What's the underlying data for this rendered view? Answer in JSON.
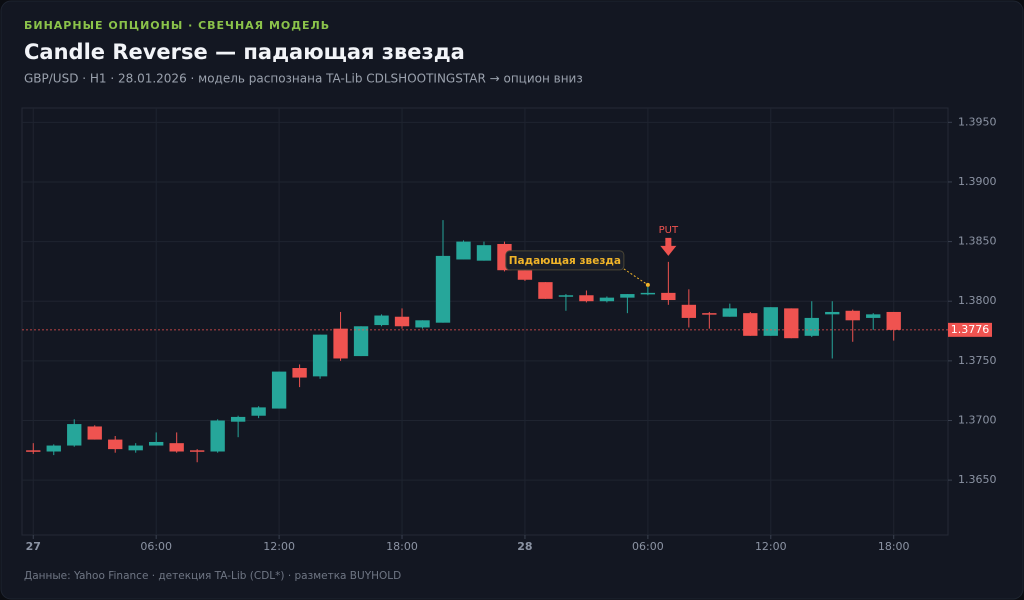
{
  "chart_data": {
    "type": "candlestick",
    "overline": "БИНАРНЫЕ ОПЦИОНЫ · СВЕЧНАЯ МОДЕЛЬ",
    "title": "Candle Reverse — падающая звезда",
    "subtitle": "GBP/USD · H1 · 28.01.2026 · модель распознана TA-Lib CDLSHOOTINGSTAR → опцион вниз",
    "footer": "Данные: Yahoo Finance · детекция TA-Lib (CDL*) · разметка BUYHOLD",
    "annotation": "Падающая звезда",
    "signal_label": "PUT",
    "last_price": {
      "value": 1.3776,
      "label": "1.3776"
    },
    "up_color": "#26a69a",
    "down_color": "#ef5350",
    "grid": true,
    "x": [
      0,
      1,
      2,
      3,
      4,
      5,
      6,
      7,
      8,
      9,
      10,
      11,
      12,
      13,
      14,
      15,
      16,
      17,
      18,
      19,
      20,
      21,
      22,
      23,
      24,
      25,
      26,
      27,
      28,
      29,
      30,
      31,
      32,
      33,
      34,
      35,
      36,
      37,
      38,
      39,
      40,
      41,
      42
    ],
    "open": [
      1.3675,
      1.3674,
      1.3679,
      1.3695,
      1.3684,
      1.3675,
      1.3679,
      1.3681,
      1.3675,
      1.3674,
      1.3699,
      1.3704,
      1.371,
      1.3744,
      1.3737,
      1.3777,
      1.3754,
      1.378,
      1.3787,
      1.3778,
      1.3782,
      1.3835,
      1.3834,
      1.3848,
      1.3826,
      1.3816,
      1.3804,
      1.3805,
      1.38,
      1.3803,
      1.3806,
      1.3807,
      1.3797,
      1.379,
      1.3787,
      1.379,
      1.3771,
      1.3794,
      1.3771,
      1.3789,
      1.3792,
      1.3786,
      1.3791
    ],
    "high": [
      1.3681,
      1.368,
      1.3701,
      1.3696,
      1.3687,
      1.3681,
      1.369,
      1.369,
      1.3676,
      1.3701,
      1.3704,
      1.3712,
      1.3741,
      1.3747,
      1.3772,
      1.3791,
      1.3779,
      1.3789,
      1.3794,
      1.3784,
      1.3868,
      1.3851,
      1.385,
      1.385,
      1.383,
      1.3816,
      1.3806,
      1.3809,
      1.3804,
      1.3806,
      1.3812,
      1.3833,
      1.381,
      1.3791,
      1.3798,
      1.3791,
      1.3795,
      1.3794,
      1.38,
      1.38,
      1.3793,
      1.379,
      1.3791
    ],
    "low": [
      1.3672,
      1.3671,
      1.3678,
      1.3684,
      1.3673,
      1.3673,
      1.3679,
      1.3673,
      1.3665,
      1.3673,
      1.3686,
      1.3702,
      1.371,
      1.3728,
      1.3735,
      1.375,
      1.3754,
      1.3779,
      1.3777,
      1.3777,
      1.3782,
      1.3835,
      1.3834,
      1.3825,
      1.3817,
      1.3802,
      1.3792,
      1.3799,
      1.3799,
      1.379,
      1.3805,
      1.3797,
      1.3778,
      1.3777,
      1.3787,
      1.3771,
      1.3771,
      1.3769,
      1.377,
      1.3752,
      1.3766,
      1.3776,
      1.3767
    ],
    "close": [
      1.3674,
      1.3679,
      1.3697,
      1.3684,
      1.3676,
      1.3679,
      1.3682,
      1.3674,
      1.3674,
      1.37,
      1.3703,
      1.3711,
      1.3741,
      1.3736,
      1.3772,
      1.3752,
      1.3779,
      1.3788,
      1.3779,
      1.3784,
      1.3838,
      1.385,
      1.3847,
      1.3826,
      1.3818,
      1.3802,
      1.3805,
      1.38,
      1.3803,
      1.3806,
      1.3807,
      1.3801,
      1.3786,
      1.3789,
      1.3794,
      1.3771,
      1.3795,
      1.3769,
      1.3786,
      1.3791,
      1.3784,
      1.3789,
      1.3776
    ],
    "xlim": [
      -0.55,
      44.65
    ],
    "ylim": [
      1.3604,
      1.3962
    ],
    "xticks": [
      {
        "value": 0,
        "label": "27"
      },
      {
        "value": 6,
        "label": "06:00"
      },
      {
        "value": 12,
        "label": "12:00"
      },
      {
        "value": 18,
        "label": "18:00"
      },
      {
        "value": 24,
        "label": "28"
      },
      {
        "value": 30,
        "label": "06:00"
      },
      {
        "value": 36,
        "label": "12:00"
      },
      {
        "value": 42,
        "label": "18:00"
      }
    ],
    "yticks": [
      {
        "value": 1.365,
        "label": "1.3650"
      },
      {
        "value": 1.37,
        "label": "1.3700"
      },
      {
        "value": 1.375,
        "label": "1.3750"
      },
      {
        "value": 1.38,
        "label": "1.3800"
      },
      {
        "value": 1.385,
        "label": "1.3850"
      },
      {
        "value": 1.39,
        "label": "1.3900"
      },
      {
        "value": 1.395,
        "label": "1.3950"
      }
    ]
  }
}
